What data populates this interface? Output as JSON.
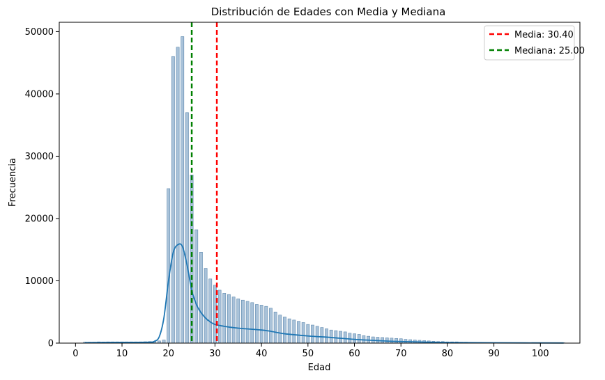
{
  "chart_data": {
    "type": "bar",
    "title": "Distribución de Edades con Media y Mediana",
    "xlabel": "Edad",
    "ylabel": "Frecuencia",
    "xlim": [
      -3.5,
      108.5
    ],
    "ylim": [
      0,
      51500
    ],
    "x_ticks": [
      0,
      10,
      20,
      30,
      40,
      50,
      60,
      70,
      80,
      90,
      100
    ],
    "y_ticks": [
      0,
      10000,
      20000,
      30000,
      40000,
      50000
    ],
    "grid": false,
    "legend_position": "top-right",
    "bar_color": "#a9c2d9",
    "bar_edge_color": "#5b87ad",
    "kde_color": "#1f77b4",
    "histogram": {
      "ages": [
        2,
        3,
        4,
        5,
        6,
        7,
        8,
        9,
        10,
        11,
        12,
        13,
        14,
        15,
        16,
        17,
        18,
        19,
        20,
        21,
        22,
        23,
        24,
        25,
        26,
        27,
        28,
        29,
        30,
        31,
        32,
        33,
        34,
        35,
        36,
        37,
        38,
        39,
        40,
        41,
        42,
        43,
        44,
        45,
        46,
        47,
        48,
        49,
        50,
        51,
        52,
        53,
        54,
        55,
        56,
        57,
        58,
        59,
        60,
        61,
        62,
        63,
        64,
        65,
        66,
        67,
        68,
        69,
        70,
        71,
        72,
        73,
        74,
        75,
        76,
        77,
        78,
        79,
        80,
        81,
        82,
        83,
        84,
        85,
        86,
        87,
        88,
        89,
        90,
        91,
        92,
        93,
        94,
        95,
        96,
        97,
        98,
        99,
        100,
        101,
        102,
        103,
        104,
        105
      ],
      "frequencies": [
        150,
        150,
        150,
        200,
        180,
        200,
        200,
        200,
        200,
        200,
        200,
        200,
        200,
        220,
        250,
        300,
        350,
        500,
        24800,
        46000,
        47500,
        49200,
        37000,
        27000,
        18200,
        14600,
        12000,
        10300,
        9300,
        8500,
        8000,
        7800,
        7400,
        7100,
        6900,
        6700,
        6500,
        6200,
        6100,
        5900,
        5600,
        5000,
        4500,
        4200,
        3900,
        3700,
        3500,
        3300,
        3000,
        2900,
        2700,
        2500,
        2300,
        2100,
        2000,
        1900,
        1800,
        1600,
        1500,
        1400,
        1200,
        1100,
        1000,
        950,
        900,
        850,
        800,
        750,
        700,
        600,
        550,
        500,
        450,
        400,
        350,
        300,
        250,
        250,
        200,
        200,
        200,
        150,
        150,
        120,
        100,
        100,
        80,
        80,
        60,
        60,
        50,
        50,
        40,
        40,
        30,
        30,
        30,
        20,
        20,
        20,
        20,
        20,
        20,
        20
      ]
    },
    "kde": {
      "x": [
        2,
        10,
        16,
        17,
        18,
        19,
        20,
        21,
        22,
        23,
        24,
        25,
        26,
        27,
        28,
        29,
        30,
        32,
        35,
        40,
        42,
        45,
        50,
        55,
        60,
        65,
        70,
        80,
        90,
        105
      ],
      "y": [
        80,
        120,
        150,
        300,
        1000,
        4000,
        10000,
        14500,
        15800,
        15500,
        12500,
        8500,
        6200,
        4900,
        4000,
        3400,
        3000,
        2700,
        2400,
        2100,
        1900,
        1500,
        1150,
        900,
        600,
        400,
        250,
        100,
        50,
        20
      ]
    },
    "reference_lines": [
      {
        "label": "Media: 30.40",
        "value": 30.4,
        "color": "#ff0000"
      },
      {
        "label": "Mediana: 25.00",
        "value": 25.0,
        "color": "#008000"
      }
    ]
  }
}
